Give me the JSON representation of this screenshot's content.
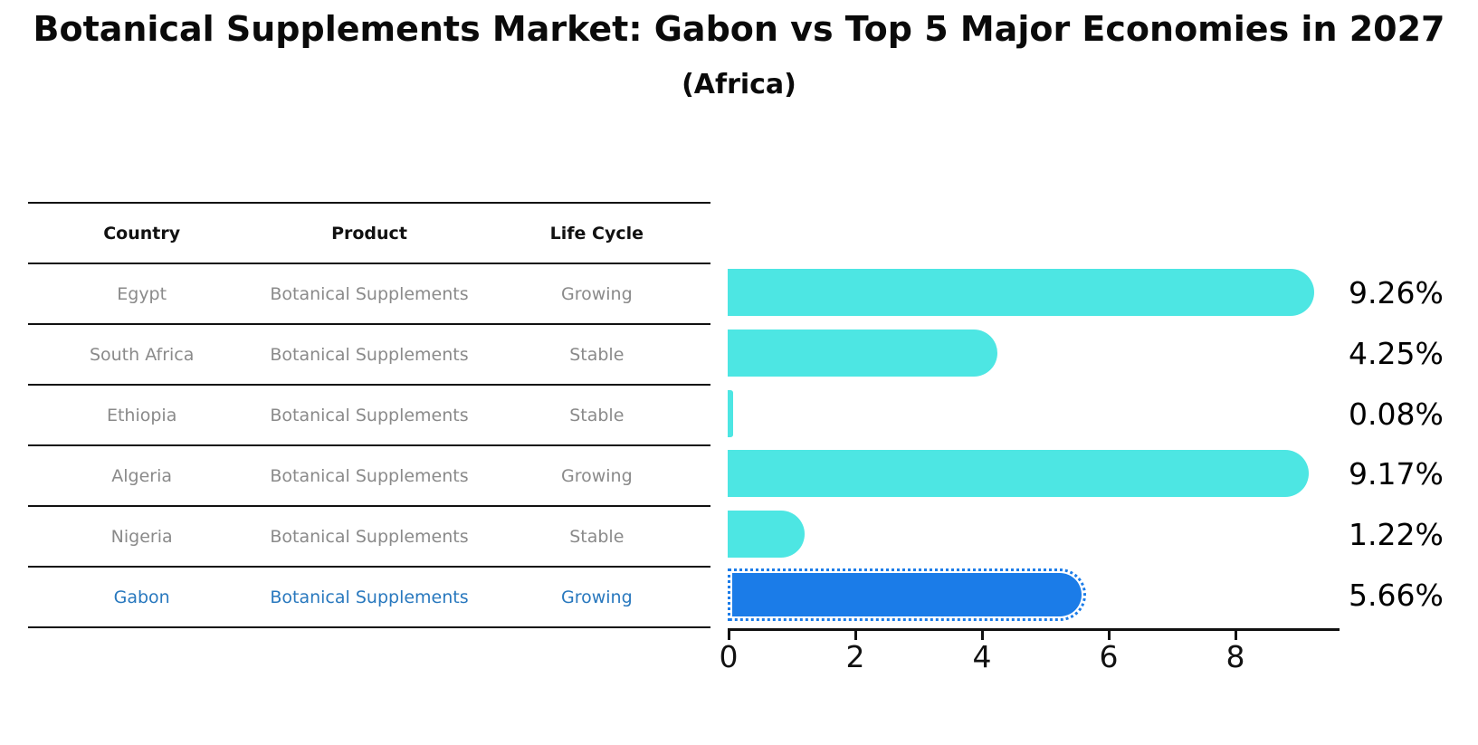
{
  "title": "Botanical Supplements Market: Gabon vs Top 5 Major Economies in 2027",
  "subtitle": "(Africa)",
  "table": {
    "headers": [
      "Country",
      "Product",
      "Life Cycle"
    ],
    "rows": [
      {
        "country": "Egypt",
        "product": "Botanical Supplements",
        "life_cycle": "Growing",
        "highlight": false
      },
      {
        "country": "South Africa",
        "product": "Botanical Supplements",
        "life_cycle": "Stable",
        "highlight": false
      },
      {
        "country": "Ethiopia",
        "product": "Botanical Supplements",
        "life_cycle": "Stable",
        "highlight": false
      },
      {
        "country": "Algeria",
        "product": "Botanical Supplements",
        "life_cycle": "Growing",
        "highlight": false
      },
      {
        "country": "Nigeria",
        "product": "Botanical Supplements",
        "life_cycle": "Stable",
        "highlight": false
      },
      {
        "country": "Gabon",
        "product": "Botanical Supplements",
        "life_cycle": "Growing",
        "highlight": true
      }
    ]
  },
  "chart_data": {
    "type": "bar",
    "orientation": "horizontal",
    "title": "Botanical Supplements Market: Gabon vs Top 5 Major Economies in 2027",
    "subtitle": "(Africa)",
    "categories": [
      "Egypt",
      "South Africa",
      "Ethiopia",
      "Algeria",
      "Nigeria",
      "Gabon"
    ],
    "values": [
      9.26,
      4.25,
      0.08,
      9.17,
      1.22,
      5.66
    ],
    "value_labels": [
      "9.26%",
      "4.25%",
      "0.08%",
      "9.17%",
      "1.22%",
      "5.66%"
    ],
    "xlabel": "",
    "ylabel": "",
    "xticks": [
      0,
      2,
      4,
      6,
      8
    ],
    "xlim": [
      0,
      9.65
    ],
    "grid": false,
    "legend": false,
    "highlight_category": "Gabon",
    "highlight_style": "dotted-edge"
  },
  "colors": {
    "bar": "#4de6e3",
    "highlight_bar": "#1b7ce8",
    "highlight_text": "#2878be",
    "table_text": "#8a8a8a",
    "header_text": "#111111",
    "value_text": "#000000",
    "line": "#111111",
    "background": "#ffffff"
  }
}
